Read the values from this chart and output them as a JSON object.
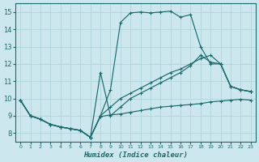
{
  "xlabel": "Humidex (Indice chaleur)",
  "bg_color": "#cce8ee",
  "grid_color": "#aad0d8",
  "line_color": "#1a6b6b",
  "xlim": [
    -0.5,
    23.5
  ],
  "ylim": [
    7.5,
    15.5
  ],
  "xticks": [
    0,
    1,
    2,
    3,
    4,
    5,
    6,
    7,
    8,
    9,
    10,
    11,
    12,
    13,
    14,
    15,
    16,
    17,
    18,
    19,
    20,
    21,
    22,
    23
  ],
  "yticks": [
    8,
    9,
    10,
    11,
    12,
    13,
    14,
    15
  ],
  "series": [
    {
      "x": [
        0,
        1,
        2,
        3,
        4,
        5,
        6,
        7,
        8,
        9,
        10,
        11,
        12,
        13,
        14,
        15,
        16,
        17,
        18,
        19,
        20,
        21,
        22,
        23
      ],
      "y": [
        9.9,
        9.0,
        8.8,
        8.5,
        8.35,
        8.25,
        8.15,
        7.75,
        9.0,
        10.5,
        14.4,
        14.95,
        15.0,
        14.95,
        15.0,
        15.05,
        14.7,
        14.85,
        13.0,
        12.0,
        12.0,
        10.7,
        10.5,
        10.4
      ]
    },
    {
      "x": [
        0,
        1,
        2,
        3,
        4,
        5,
        6,
        7,
        8,
        9,
        10,
        11,
        12,
        13,
        14,
        15,
        16,
        17,
        18,
        19,
        20,
        21,
        22,
        23
      ],
      "y": [
        9.9,
        9.0,
        8.8,
        8.5,
        8.35,
        8.25,
        8.15,
        7.75,
        9.0,
        9.5,
        10.0,
        10.3,
        10.6,
        10.9,
        11.2,
        11.5,
        11.7,
        12.0,
        12.3,
        12.5,
        12.0,
        10.7,
        10.5,
        10.4
      ]
    },
    {
      "x": [
        0,
        1,
        2,
        3,
        4,
        5,
        6,
        7,
        8,
        9,
        10,
        11,
        12,
        13,
        14,
        15,
        16,
        17,
        18,
        19,
        20,
        21,
        22,
        23
      ],
      "y": [
        9.9,
        9.0,
        8.8,
        8.5,
        8.35,
        8.25,
        8.15,
        7.75,
        11.5,
        9.0,
        9.5,
        10.0,
        10.3,
        10.6,
        10.9,
        11.2,
        11.5,
        11.9,
        12.5,
        12.1,
        12.0,
        10.7,
        10.5,
        10.4
      ]
    },
    {
      "x": [
        0,
        1,
        2,
        3,
        4,
        5,
        6,
        7,
        8,
        9,
        10,
        11,
        12,
        13,
        14,
        15,
        16,
        17,
        18,
        19,
        20,
        21,
        22,
        23
      ],
      "y": [
        9.9,
        9.0,
        8.8,
        8.5,
        8.35,
        8.25,
        8.15,
        7.75,
        8.95,
        9.05,
        9.1,
        9.2,
        9.3,
        9.4,
        9.5,
        9.55,
        9.6,
        9.65,
        9.7,
        9.8,
        9.85,
        9.9,
        9.95,
        9.9
      ]
    }
  ]
}
